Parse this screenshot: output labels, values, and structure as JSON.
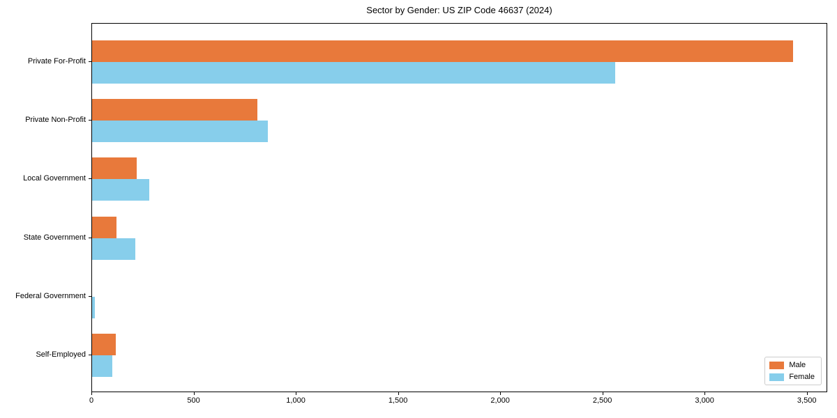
{
  "chart_data": {
    "type": "bar",
    "orientation": "horizontal",
    "title": "Sector by Gender: US ZIP Code 46637 (2024)",
    "categories": [
      "Private For-Profit",
      "Private Non-Profit",
      "Local Government",
      "State Government",
      "Federal Government",
      "Self-Employed"
    ],
    "series": [
      {
        "name": "Male",
        "color": "#E8793B",
        "values": [
          3430,
          810,
          220,
          120,
          0,
          115
        ]
      },
      {
        "name": "Female",
        "color": "#87CEEB",
        "values": [
          2560,
          860,
          280,
          210,
          15,
          100
        ]
      }
    ],
    "xlim": [
      0,
      3600
    ],
    "xticks": [
      0,
      500,
      1000,
      1500,
      2000,
      2500,
      3000,
      3500
    ],
    "xtick_labels": [
      "0",
      "500",
      "1,000",
      "1,500",
      "2,000",
      "2,500",
      "3,000",
      "3,500"
    ],
    "xlabel": "",
    "ylabel": "",
    "grid": false,
    "legend_position": "lower right",
    "frame": true
  },
  "colors": {
    "axis": "#000000",
    "background": "#ffffff",
    "legend_border": "#cccccc"
  },
  "legend": {
    "items": [
      {
        "label": "Male"
      },
      {
        "label": "Female"
      }
    ]
  }
}
